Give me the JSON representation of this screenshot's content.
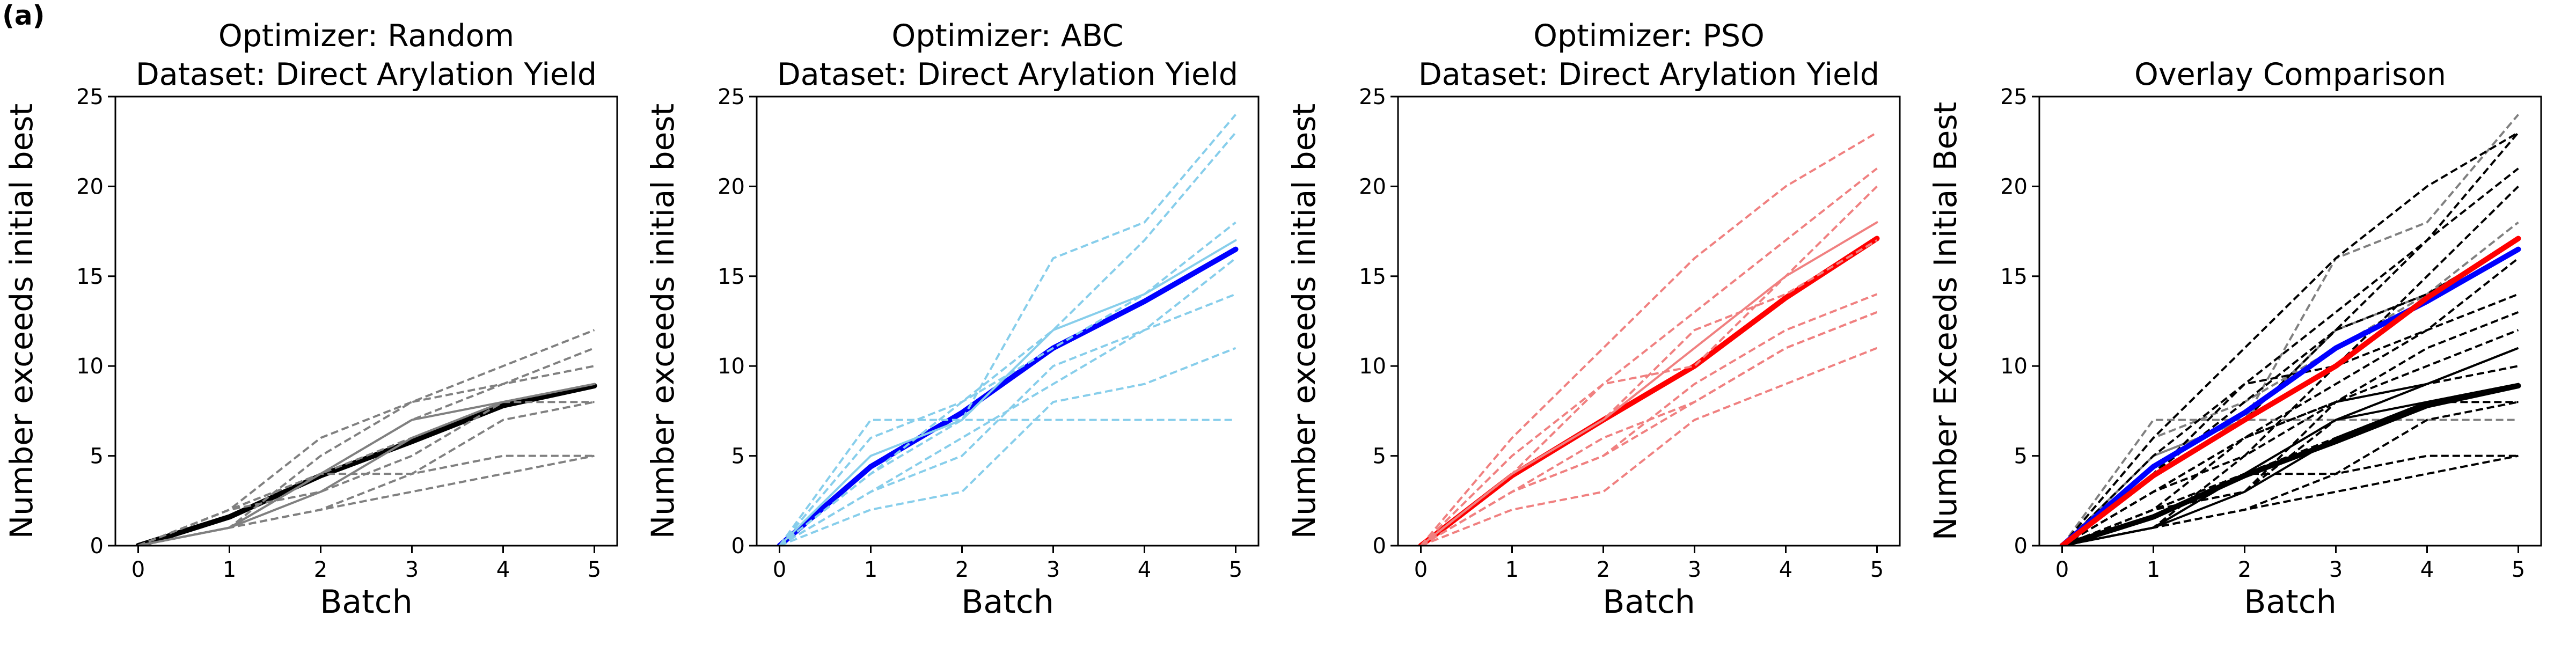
{
  "figure": {
    "panel_label": "(a)"
  },
  "chart_data": [
    {
      "type": "line",
      "title": [
        "Optimizer: Random",
        "Dataset: Direct Arylation Yield"
      ],
      "xlabel": "Batch",
      "ylabel": "Number exceeds initial best",
      "xlim": [
        -0.25,
        5.25
      ],
      "ylim": [
        0,
        25
      ],
      "xticks": [
        "0",
        "1",
        "2",
        "3",
        "4",
        "5"
      ],
      "yticks": [
        "0",
        "5",
        "10",
        "15",
        "20",
        "25"
      ],
      "grid": false,
      "x": [
        0,
        1,
        2,
        3,
        4,
        5
      ],
      "series": [
        {
          "values": [
            0,
            1.6,
            3.9,
            5.8,
            7.8,
            8.9
          ],
          "color": "#000000",
          "width": 10,
          "dash": "solid"
        },
        {
          "values": [
            0,
            2,
            6,
            8,
            10,
            12
          ],
          "color": "#808080",
          "width": 4,
          "dash": "dashed"
        },
        {
          "values": [
            0,
            1,
            5,
            8,
            9,
            11
          ],
          "color": "#808080",
          "width": 4,
          "dash": "dashed"
        },
        {
          "values": [
            0,
            2,
            4,
            7,
            9,
            10
          ],
          "color": "#808080",
          "width": 4,
          "dash": "dashed"
        },
        {
          "values": [
            0,
            2,
            3,
            5,
            8,
            9
          ],
          "color": "#808080",
          "width": 4,
          "dash": "dashed"
        },
        {
          "values": [
            0,
            1,
            4,
            6,
            8,
            8
          ],
          "color": "#808080",
          "width": 4,
          "dash": "dashed"
        },
        {
          "values": [
            0,
            1,
            2,
            4,
            7,
            8
          ],
          "color": "#808080",
          "width": 4,
          "dash": "dashed"
        },
        {
          "values": [
            0,
            2,
            4,
            4,
            5,
            5
          ],
          "color": "#808080",
          "width": 4,
          "dash": "dashed"
        },
        {
          "values": [
            0,
            1,
            2,
            3,
            4,
            5
          ],
          "color": "#808080",
          "width": 4,
          "dash": "dashed"
        },
        {
          "values": [
            0,
            1,
            4,
            7,
            8,
            9
          ],
          "color": "#808080",
          "width": 4,
          "dash": "solid"
        },
        {
          "values": [
            0,
            1,
            3,
            6,
            8,
            9
          ],
          "color": "#808080",
          "width": 4,
          "dash": "solid"
        }
      ]
    },
    {
      "type": "line",
      "title": [
        "Optimizer: ABC",
        "Dataset: Direct Arylation Yield"
      ],
      "xlabel": "Batch",
      "ylabel": "Number exceeds initial best",
      "xlim": [
        -0.25,
        5.25
      ],
      "ylim": [
        0,
        25
      ],
      "xticks": [
        "0",
        "1",
        "2",
        "3",
        "4",
        "5"
      ],
      "yticks": [
        "0",
        "5",
        "10",
        "15",
        "20",
        "25"
      ],
      "grid": false,
      "x": [
        0,
        1,
        2,
        3,
        4,
        5
      ],
      "series": [
        {
          "values": [
            0,
            4.4,
            7.4,
            11.0,
            13.6,
            16.5
          ],
          "color": "#0000ff",
          "width": 10,
          "dash": "solid"
        },
        {
          "values": [
            0,
            7,
            7,
            16,
            18,
            24
          ],
          "color": "#87ceeb",
          "width": 4,
          "dash": "dashed"
        },
        {
          "values": [
            0,
            4,
            8,
            12,
            17,
            23
          ],
          "color": "#87ceeb",
          "width": 4,
          "dash": "dashed"
        },
        {
          "values": [
            0,
            6,
            8,
            11,
            14,
            18
          ],
          "color": "#87ceeb",
          "width": 4,
          "dash": "dashed"
        },
        {
          "values": [
            0,
            3,
            6,
            9,
            12,
            16
          ],
          "color": "#87ceeb",
          "width": 4,
          "dash": "dashed"
        },
        {
          "values": [
            0,
            3,
            5,
            10,
            12,
            14
          ],
          "color": "#87ceeb",
          "width": 4,
          "dash": "dashed"
        },
        {
          "values": [
            0,
            2,
            3,
            8,
            9,
            11
          ],
          "color": "#87ceeb",
          "width": 4,
          "dash": "dashed"
        },
        {
          "values": [
            0,
            4,
            7,
            7,
            7,
            7
          ],
          "color": "#87ceeb",
          "width": 4,
          "dash": "dashed"
        },
        {
          "values": [
            0,
            5,
            7,
            12,
            14,
            17
          ],
          "color": "#87ceeb",
          "width": 4,
          "dash": "solid"
        }
      ]
    },
    {
      "type": "line",
      "title": [
        "Optimizer: PSO",
        "Dataset: Direct Arylation Yield"
      ],
      "xlabel": "Batch",
      "ylabel": "Number exceeds initial best",
      "xlim": [
        -0.25,
        5.25
      ],
      "ylim": [
        0,
        25
      ],
      "xticks": [
        "0",
        "1",
        "2",
        "3",
        "4",
        "5"
      ],
      "yticks": [
        "0",
        "5",
        "10",
        "15",
        "20",
        "25"
      ],
      "grid": false,
      "x": [
        0,
        1,
        2,
        3,
        4,
        5
      ],
      "series": [
        {
          "values": [
            0,
            3.9,
            7.0,
            10.0,
            13.8,
            17.1
          ],
          "color": "#ff0000",
          "width": 10,
          "dash": "solid"
        },
        {
          "values": [
            0,
            6,
            11,
            16,
            20,
            23
          ],
          "color": "#f08080",
          "width": 4,
          "dash": "dashed"
        },
        {
          "values": [
            0,
            5,
            9,
            13,
            17,
            21
          ],
          "color": "#f08080",
          "width": 4,
          "dash": "dashed"
        },
        {
          "values": [
            0,
            4,
            9,
            10,
            15,
            20
          ],
          "color": "#f08080",
          "width": 4,
          "dash": "dashed"
        },
        {
          "values": [
            0,
            4,
            7,
            12,
            14,
            17
          ],
          "color": "#f08080",
          "width": 4,
          "dash": "dashed"
        },
        {
          "values": [
            0,
            3,
            5,
            9,
            12,
            14
          ],
          "color": "#f08080",
          "width": 4,
          "dash": "dashed"
        },
        {
          "values": [
            0,
            3,
            6,
            8,
            11,
            13
          ],
          "color": "#f08080",
          "width": 4,
          "dash": "dashed"
        },
        {
          "values": [
            0,
            2,
            3,
            7,
            9,
            11
          ],
          "color": "#f08080",
          "width": 4,
          "dash": "dashed"
        },
        {
          "values": [
            0,
            3,
            5,
            8,
            11,
            13
          ],
          "color": "#f08080",
          "width": 4,
          "dash": "dashed"
        },
        {
          "values": [
            0,
            4,
            7,
            11,
            15,
            18
          ],
          "color": "#f08080",
          "width": 4,
          "dash": "solid"
        }
      ]
    },
    {
      "type": "line",
      "title": [
        "Overlay Comparison"
      ],
      "xlabel": "Batch",
      "ylabel": "Number Exceeds Initial Best",
      "xlim": [
        -0.25,
        5.25
      ],
      "ylim": [
        0,
        25
      ],
      "xticks": [
        "0",
        "1",
        "2",
        "3",
        "4",
        "5"
      ],
      "yticks": [
        "0",
        "5",
        "10",
        "15",
        "20",
        "25"
      ],
      "grid": false,
      "x": [
        0,
        1,
        2,
        3,
        4,
        5
      ],
      "series": [
        {
          "values": [
            0,
            7,
            7,
            16,
            18,
            24
          ],
          "color": "#808080",
          "width": 4,
          "dash": "dashed"
        },
        {
          "values": [
            0,
            6,
            8,
            11,
            14,
            18
          ],
          "color": "#808080",
          "width": 4,
          "dash": "dashed"
        },
        {
          "values": [
            0,
            5,
            7,
            12,
            14,
            17
          ],
          "color": "#808080",
          "width": 4,
          "dash": "solid"
        },
        {
          "values": [
            0,
            4,
            7,
            7,
            7,
            7
          ],
          "color": "#808080",
          "width": 4,
          "dash": "dashed"
        },
        {
          "values": [
            0,
            6,
            11,
            16,
            20,
            23
          ],
          "color": "#000000",
          "width": 4,
          "dash": "dashed"
        },
        {
          "values": [
            0,
            5,
            9,
            13,
            17,
            21
          ],
          "color": "#000000",
          "width": 4,
          "dash": "dashed"
        },
        {
          "values": [
            0,
            4,
            9,
            10,
            15,
            20
          ],
          "color": "#000000",
          "width": 4,
          "dash": "dashed"
        },
        {
          "values": [
            0,
            4,
            8,
            12,
            17,
            23
          ],
          "color": "#000000",
          "width": 4,
          "dash": "dashed"
        },
        {
          "values": [
            0,
            3,
            6,
            9,
            12,
            16
          ],
          "color": "#000000",
          "width": 4,
          "dash": "dashed"
        },
        {
          "values": [
            0,
            3,
            5,
            10,
            12,
            14
          ],
          "color": "#000000",
          "width": 4,
          "dash": "dashed"
        },
        {
          "values": [
            0,
            4,
            7,
            12,
            14,
            17
          ],
          "color": "#000000",
          "width": 4,
          "dash": "dashed"
        },
        {
          "values": [
            0,
            3,
            6,
            8,
            11,
            13
          ],
          "color": "#000000",
          "width": 4,
          "dash": "dashed"
        },
        {
          "values": [
            0,
            2,
            3,
            8,
            9,
            11
          ],
          "color": "#000000",
          "width": 4,
          "dash": "dashed"
        },
        {
          "values": [
            0,
            2,
            3,
            7,
            9,
            11
          ],
          "color": "#000000",
          "width": 4,
          "dash": "dashed"
        },
        {
          "values": [
            0,
            2,
            6,
            8,
            10,
            12
          ],
          "color": "#000000",
          "width": 4,
          "dash": "dashed"
        },
        {
          "values": [
            0,
            1,
            5,
            8,
            9,
            11
          ],
          "color": "#000000",
          "width": 4,
          "dash": "dashed"
        },
        {
          "values": [
            0,
            2,
            4,
            7,
            9,
            10
          ],
          "color": "#000000",
          "width": 4,
          "dash": "dashed"
        },
        {
          "values": [
            0,
            1,
            4,
            6,
            8,
            8
          ],
          "color": "#000000",
          "width": 4,
          "dash": "dashed"
        },
        {
          "values": [
            0,
            1,
            2,
            4,
            7,
            8
          ],
          "color": "#000000",
          "width": 4,
          "dash": "dashed"
        },
        {
          "values": [
            0,
            2,
            4,
            4,
            5,
            5
          ],
          "color": "#000000",
          "width": 4,
          "dash": "dashed"
        },
        {
          "values": [
            0,
            1,
            2,
            3,
            4,
            5
          ],
          "color": "#000000",
          "width": 4,
          "dash": "dashed"
        },
        {
          "values": [
            0,
            1,
            4,
            7,
            8,
            9
          ],
          "color": "#000000",
          "width": 4,
          "dash": "solid"
        },
        {
          "values": [
            0,
            1,
            3,
            6,
            8,
            9
          ],
          "color": "#000000",
          "width": 4,
          "dash": "solid"
        },
        {
          "values": [
            0,
            1.6,
            3.9,
            5.8,
            7.8,
            8.9
          ],
          "color": "#000000",
          "width": 10,
          "dash": "solid"
        },
        {
          "values": [
            0,
            4.4,
            7.4,
            11.0,
            13.6,
            16.5
          ],
          "color": "#0000ff",
          "width": 10,
          "dash": "solid"
        },
        {
          "values": [
            0,
            3.9,
            7.0,
            10.0,
            13.8,
            17.1
          ],
          "color": "#ff0000",
          "width": 10,
          "dash": "solid"
        }
      ]
    }
  ]
}
